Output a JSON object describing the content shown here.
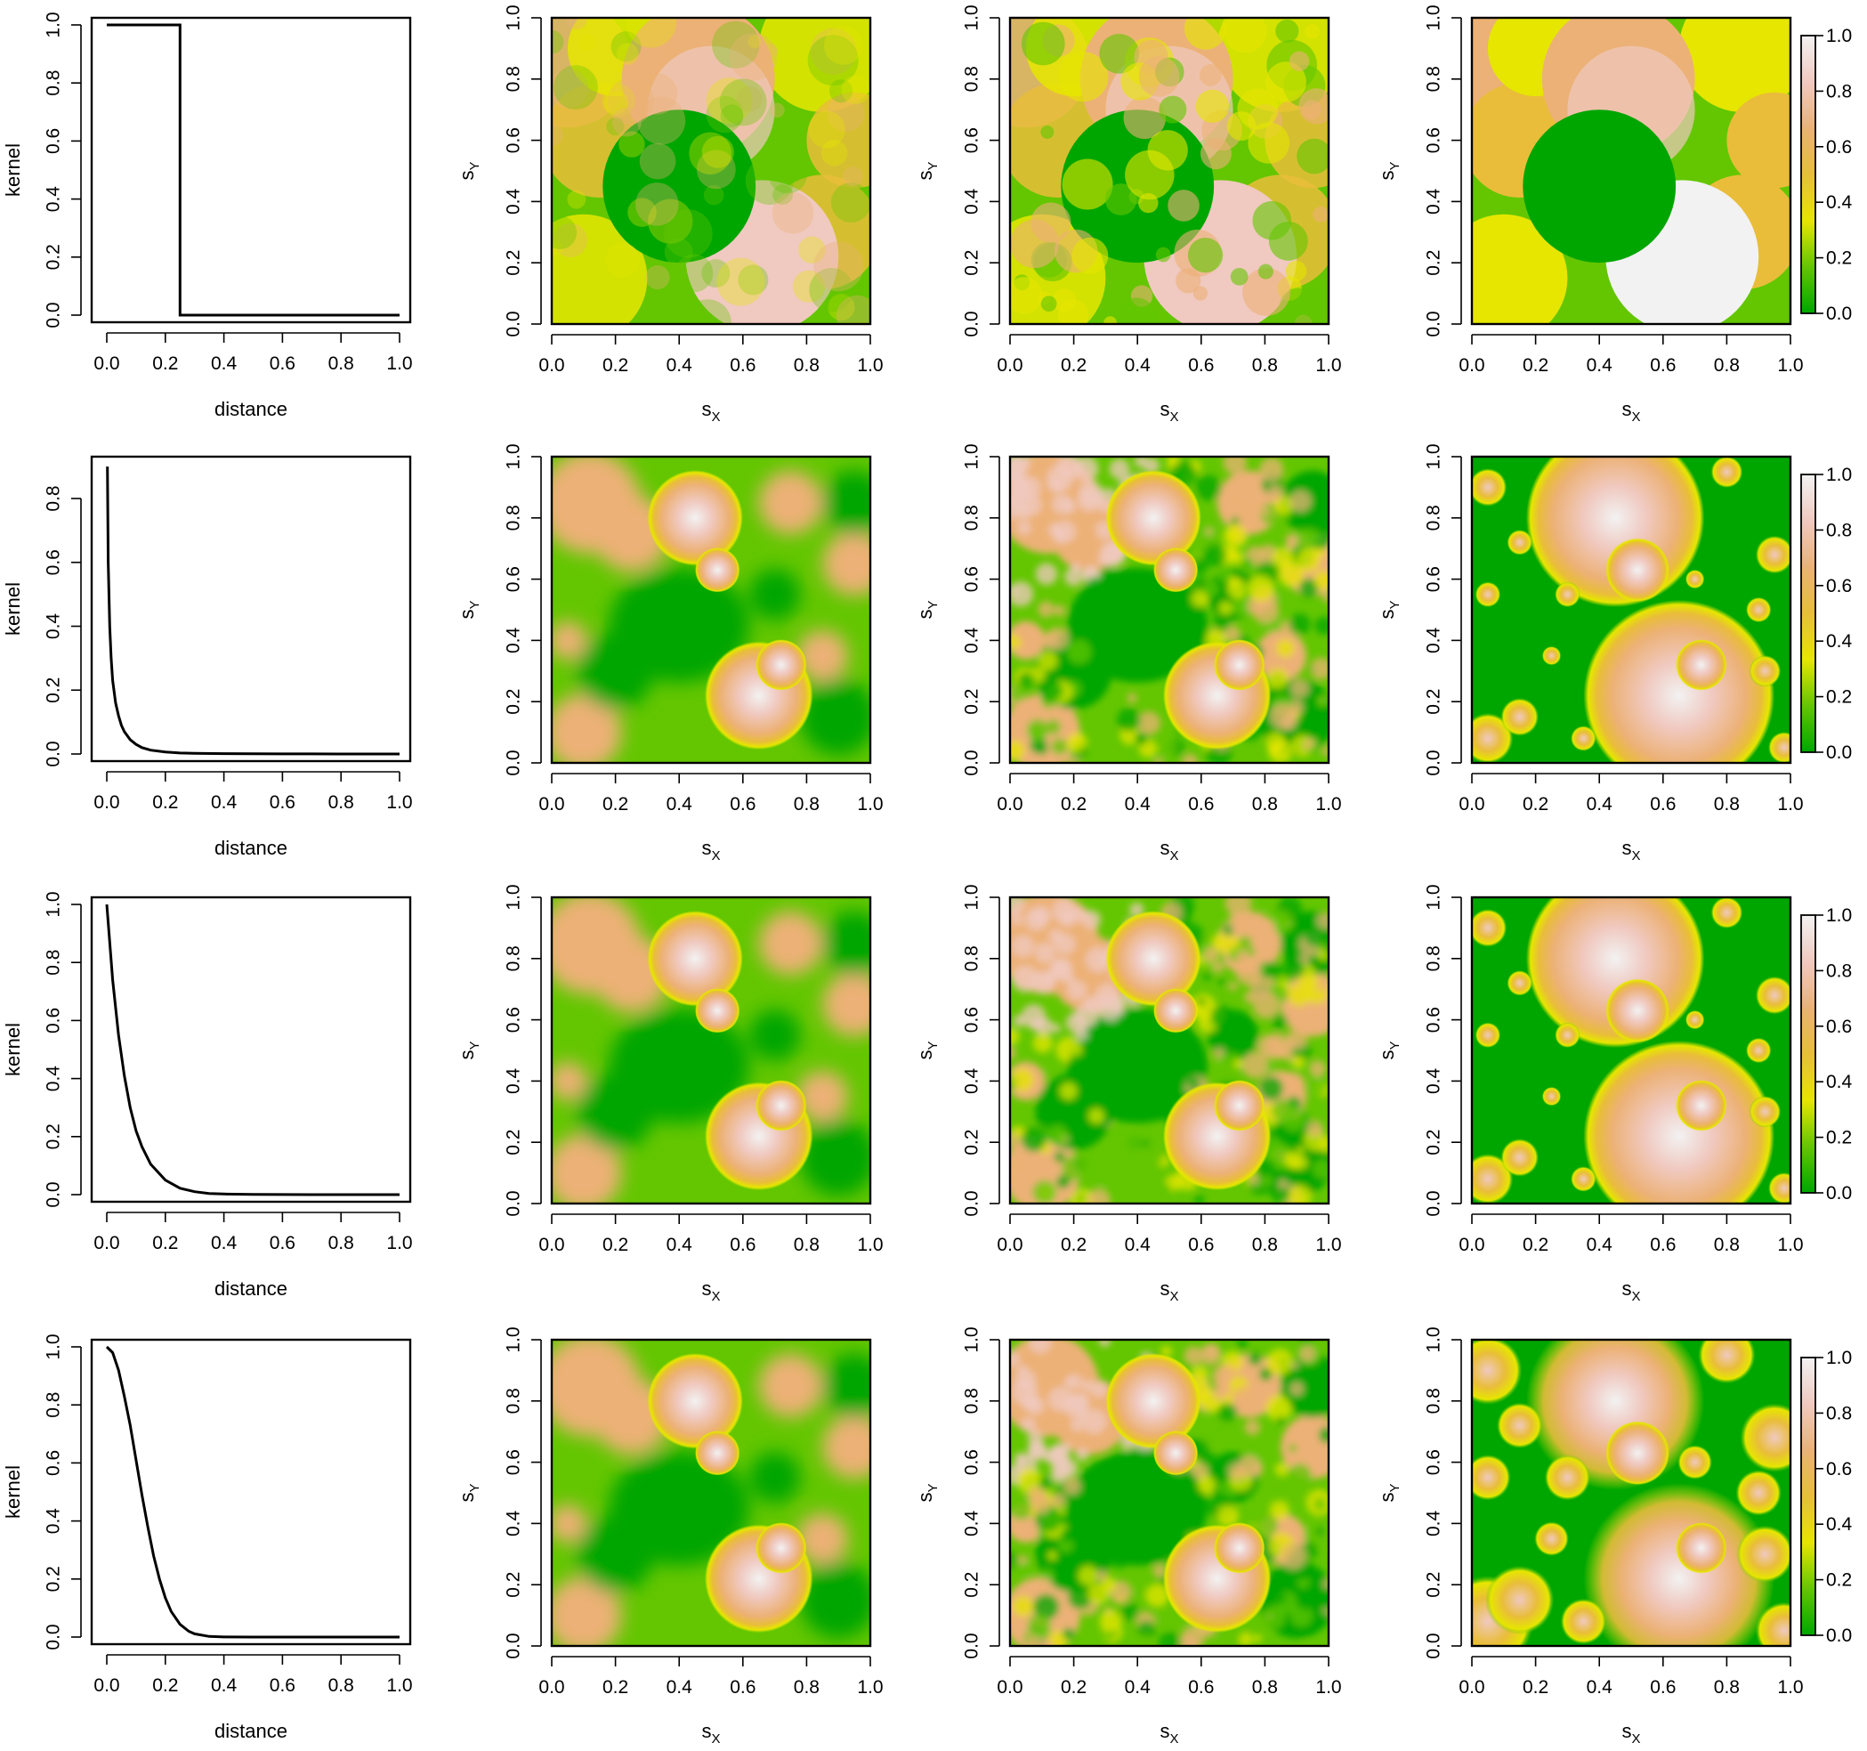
{
  "chart_data": {
    "layout": "4 rows x 4 columns",
    "rows": [
      {
        "kernel": {
          "type": "line",
          "shape": "uniform",
          "xlabel": "distance",
          "ylabel": "kernel",
          "xlim": [
            0,
            1
          ],
          "ylim": [
            0,
            1
          ],
          "x": [
            0,
            0.25,
            0.25,
            1
          ],
          "y": [
            1,
            1,
            0,
            0
          ]
        },
        "maps": [
          {
            "type": "heatmap",
            "style": "disks-blended",
            "xlabel": "sX",
            "ylabel": "sY",
            "xlim": [
              0,
              1
            ],
            "ylim": [
              0,
              1
            ]
          },
          {
            "type": "heatmap",
            "style": "disks-noisy",
            "xlabel": "sX",
            "ylabel": "sY",
            "xlim": [
              0,
              1
            ],
            "ylim": [
              0,
              1
            ]
          },
          {
            "type": "heatmap",
            "style": "disks-flat",
            "xlabel": "sX",
            "ylabel": "sY",
            "xlim": [
              0,
              1
            ],
            "ylim": [
              0,
              1
            ]
          }
        ]
      },
      {
        "kernel": {
          "type": "line",
          "shape": "power",
          "xlabel": "distance",
          "ylabel": "kernel",
          "xlim": [
            0,
            1
          ],
          "ylim": [
            0,
            0.9
          ],
          "x": [
            0.002,
            0.005,
            0.01,
            0.015,
            0.02,
            0.03,
            0.04,
            0.05,
            0.06,
            0.08,
            0.1,
            0.12,
            0.15,
            0.2,
            0.25,
            0.3,
            0.4,
            0.5,
            0.6,
            0.7,
            0.8,
            0.9,
            1.0
          ],
          "y": [
            0.9,
            0.6,
            0.4,
            0.3,
            0.23,
            0.16,
            0.12,
            0.09,
            0.07,
            0.045,
            0.03,
            0.02,
            0.012,
            0.006,
            0.003,
            0.002,
            0.001,
            0.0005,
            0.0003,
            0.0002,
            0.0001,
            0.0001,
            0.0
          ]
        },
        "maps": [
          {
            "type": "heatmap",
            "style": "smooth-spots",
            "xlabel": "sX",
            "ylabel": "sY",
            "xlim": [
              0,
              1
            ],
            "ylim": [
              0,
              1
            ]
          },
          {
            "type": "heatmap",
            "style": "noisy",
            "xlabel": "sX",
            "ylabel": "sY",
            "xlim": [
              0,
              1
            ],
            "ylim": [
              0,
              1
            ]
          },
          {
            "type": "heatmap",
            "style": "radial-spots",
            "xlabel": "sX",
            "ylabel": "sY",
            "xlim": [
              0,
              1
            ],
            "ylim": [
              0,
              1
            ]
          }
        ]
      },
      {
        "kernel": {
          "type": "line",
          "shape": "exponential",
          "xlabel": "distance",
          "ylabel": "kernel",
          "xlim": [
            0,
            1
          ],
          "ylim": [
            0,
            1
          ],
          "x": [
            0,
            0.02,
            0.04,
            0.06,
            0.08,
            0.1,
            0.12,
            0.15,
            0.2,
            0.25,
            0.3,
            0.35,
            0.4,
            0.5,
            0.6,
            0.7,
            0.8,
            0.9,
            1.0
          ],
          "y": [
            1.0,
            0.74,
            0.55,
            0.41,
            0.3,
            0.22,
            0.165,
            0.105,
            0.05,
            0.022,
            0.01,
            0.004,
            0.002,
            0.0005,
            0.0002,
            0.0001,
            0.0,
            0.0,
            0.0
          ]
        },
        "maps": [
          {
            "type": "heatmap",
            "style": "smooth",
            "xlabel": "sX",
            "ylabel": "sY",
            "xlim": [
              0,
              1
            ],
            "ylim": [
              0,
              1
            ]
          },
          {
            "type": "heatmap",
            "style": "noisy",
            "xlabel": "sX",
            "ylabel": "sY",
            "xlim": [
              0,
              1
            ],
            "ylim": [
              0,
              1
            ]
          },
          {
            "type": "heatmap",
            "style": "radial-spots",
            "xlabel": "sX",
            "ylabel": "sY",
            "xlim": [
              0,
              1
            ],
            "ylim": [
              0,
              1
            ]
          }
        ]
      },
      {
        "kernel": {
          "type": "line",
          "shape": "gaussian",
          "xlabel": "distance",
          "ylabel": "kernel",
          "xlim": [
            0,
            1
          ],
          "ylim": [
            0,
            1
          ],
          "x": [
            0,
            0.02,
            0.04,
            0.06,
            0.08,
            0.1,
            0.12,
            0.14,
            0.16,
            0.18,
            0.2,
            0.22,
            0.25,
            0.28,
            0.3,
            0.35,
            0.4,
            0.5,
            0.6,
            0.7,
            0.8,
            0.9,
            1.0
          ],
          "y": [
            1.0,
            0.98,
            0.92,
            0.83,
            0.73,
            0.61,
            0.49,
            0.38,
            0.28,
            0.2,
            0.135,
            0.088,
            0.044,
            0.02,
            0.011,
            0.002,
            0.0003,
            0.0,
            0.0,
            0.0,
            0.0,
            0.0,
            0.0
          ]
        },
        "maps": [
          {
            "type": "heatmap",
            "style": "smooth",
            "xlabel": "sX",
            "ylabel": "sY",
            "xlim": [
              0,
              1
            ],
            "ylim": [
              0,
              1
            ]
          },
          {
            "type": "heatmap",
            "style": "noisy",
            "xlabel": "sX",
            "ylabel": "sY",
            "xlim": [
              0,
              1
            ],
            "ylim": [
              0,
              1
            ]
          },
          {
            "type": "heatmap",
            "style": "radial-smooth",
            "xlabel": "sX",
            "ylabel": "sY",
            "xlim": [
              0,
              1
            ],
            "ylim": [
              0,
              1
            ]
          }
        ]
      }
    ],
    "colorbar": {
      "range": [
        0,
        1
      ],
      "ticks": [
        0.0,
        0.2,
        0.4,
        0.6,
        0.8,
        1.0
      ],
      "colors": [
        "#00a600",
        "#63c600",
        "#e6e600",
        "#e9bd3a",
        "#ecb176",
        "#f0c9c0",
        "#f2f2f2"
      ]
    },
    "tick_labels": [
      "0.0",
      "0.2",
      "0.4",
      "0.6",
      "0.8",
      "1.0"
    ],
    "axis_text": {
      "distance": "distance",
      "kernel": "kernel",
      "sx_main": "s",
      "sx_sub": "X",
      "sy_main": "s",
      "sy_sub": "Y"
    },
    "feature_points": {
      "low": [
        0.4,
        0.45
      ],
      "high_a": [
        0.45,
        0.8
      ],
      "high_b": [
        0.65,
        0.22
      ]
    }
  }
}
